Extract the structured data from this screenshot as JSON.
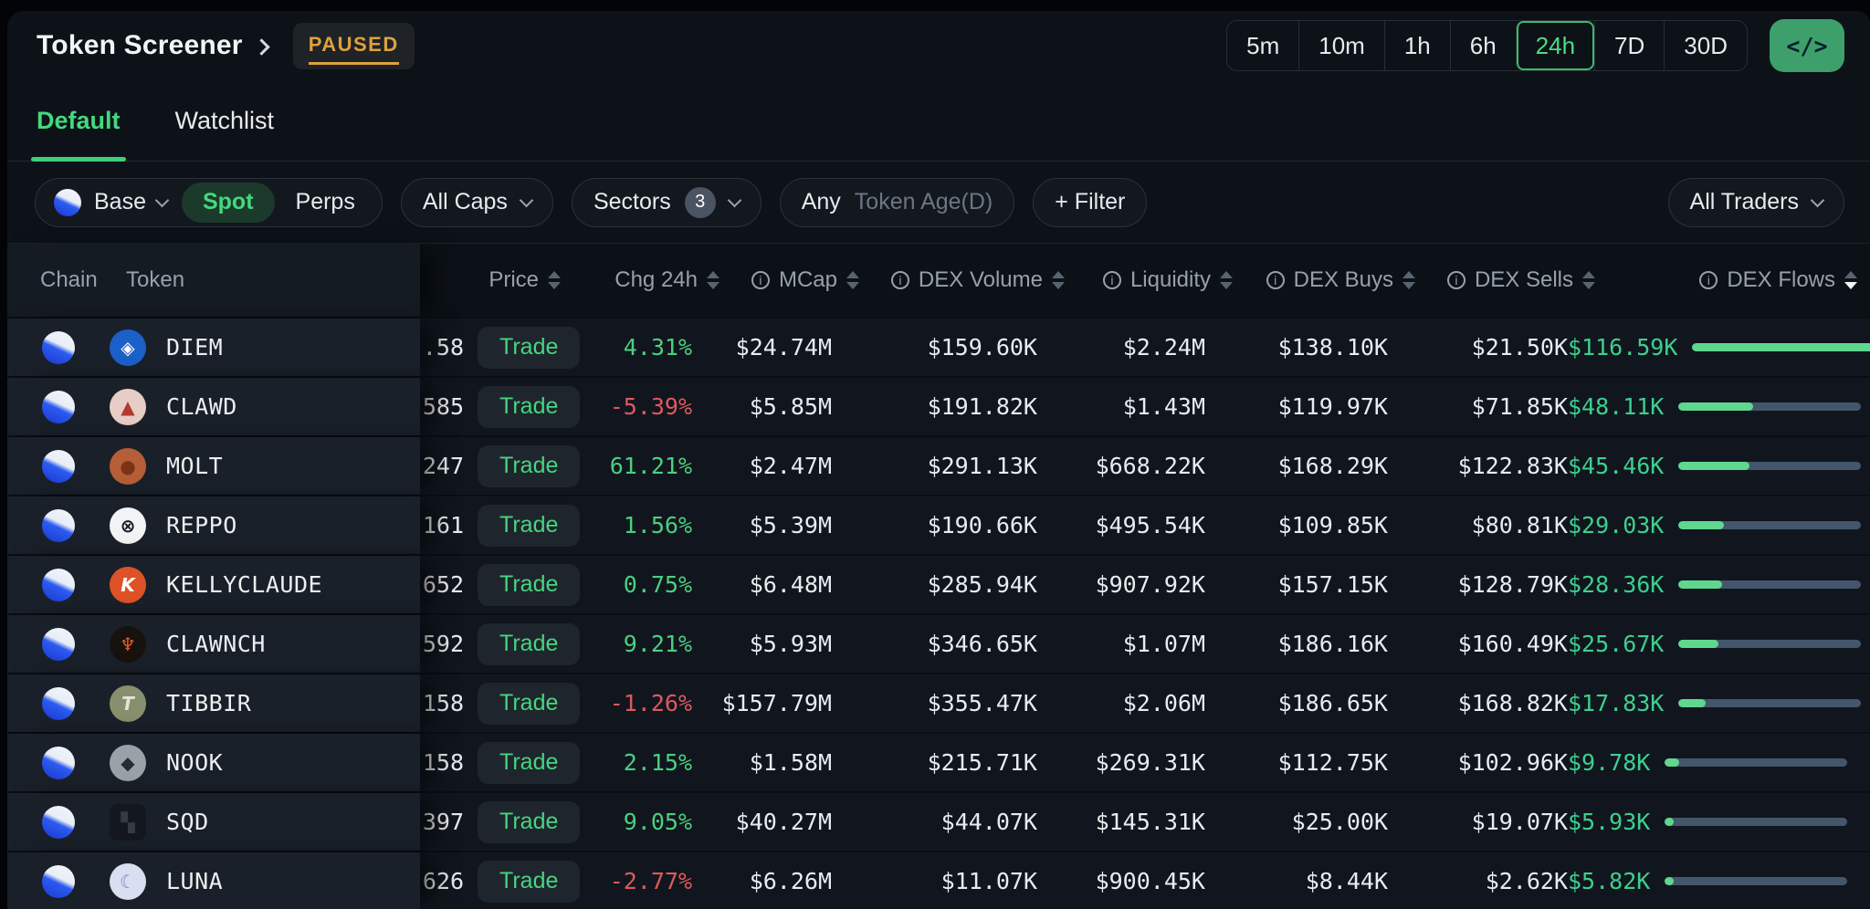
{
  "header": {
    "title": "Token Screener",
    "status_badge": "PAUSED",
    "timeframes": [
      "5m",
      "10m",
      "1h",
      "6h",
      "24h",
      "7D",
      "30D"
    ],
    "active_timeframe": "24h",
    "code_button_label": "</>"
  },
  "tabs": [
    {
      "label": "Default",
      "active": true
    },
    {
      "label": "Watchlist",
      "active": false
    }
  ],
  "filters": {
    "chain": {
      "label": "Base",
      "icon": "base-chain-icon"
    },
    "market_toggle": {
      "options": [
        "Spot",
        "Perps"
      ],
      "selected": "Spot"
    },
    "caps": "All Caps",
    "sectors": {
      "label": "Sectors",
      "count": "3"
    },
    "token_age": {
      "value": "Any",
      "placeholder": "Token Age(D)"
    },
    "add_filter": "+ Filter",
    "traders": "All Traders"
  },
  "table": {
    "trade_label": "Trade",
    "columns": [
      {
        "key": "chain",
        "label": "Chain",
        "info": false,
        "sortable": false
      },
      {
        "key": "token",
        "label": "Token",
        "info": false,
        "sortable": false
      },
      {
        "key": "price",
        "label": "Price",
        "info": false,
        "sortable": true
      },
      {
        "key": "chg",
        "label": "Chg 24h",
        "info": false,
        "sortable": true
      },
      {
        "key": "mcap",
        "label": "MCap",
        "info": true,
        "sortable": true
      },
      {
        "key": "volume",
        "label": "DEX Volume",
        "info": true,
        "sortable": true
      },
      {
        "key": "liquidity",
        "label": "Liquidity",
        "info": true,
        "sortable": true
      },
      {
        "key": "buys",
        "label": "DEX Buys",
        "info": true,
        "sortable": true
      },
      {
        "key": "sells",
        "label": "DEX Sells",
        "info": true,
        "sortable": true
      },
      {
        "key": "flows",
        "label": "DEX Flows",
        "info": true,
        "sortable": true,
        "sorted": "desc"
      }
    ],
    "rows": [
      {
        "chain": "Base",
        "token": "DIEM",
        "icon": {
          "bg": "#1b5fc8",
          "fg": "#ffffff",
          "glyph": "◈",
          "shape": "circle"
        },
        "price_partial": ".58",
        "chg_24h": "4.31%",
        "mcap": "$24.74M",
        "dex_volume": "$159.60K",
        "liquidity": "$2.24M",
        "dex_buys": "$138.10K",
        "dex_sells": "$21.50K",
        "dex_flows": "$116.59K",
        "flow_bar_pct": 100
      },
      {
        "chain": "Base",
        "token": "CLAWD",
        "icon": {
          "bg": "#e7cdc5",
          "fg": "#b03a2e",
          "glyph": "▲",
          "shape": "circle"
        },
        "price_partial": "585",
        "chg_24h": "-5.39%",
        "mcap": "$5.85M",
        "dex_volume": "$191.82K",
        "liquidity": "$1.43M",
        "dex_buys": "$119.97K",
        "dex_sells": "$71.85K",
        "dex_flows": "$48.11K",
        "flow_bar_pct": 41
      },
      {
        "chain": "Base",
        "token": "MOLT",
        "icon": {
          "bg": "#b55e38",
          "fg": "#7c3215",
          "glyph": "●",
          "shape": "circle"
        },
        "price_partial": "247",
        "chg_24h": "61.21%",
        "mcap": "$2.47M",
        "dex_volume": "$291.13K",
        "liquidity": "$668.22K",
        "dex_buys": "$168.29K",
        "dex_sells": "$122.83K",
        "dex_flows": "$45.46K",
        "flow_bar_pct": 39
      },
      {
        "chain": "Base",
        "token": "REPPO",
        "icon": {
          "bg": "#f2f3f4",
          "fg": "#15181c",
          "glyph": "⊗",
          "shape": "circle"
        },
        "price_partial": "161",
        "chg_24h": "1.56%",
        "mcap": "$5.39M",
        "dex_volume": "$190.66K",
        "liquidity": "$495.54K",
        "dex_buys": "$109.85K",
        "dex_sells": "$80.81K",
        "dex_flows": "$29.03K",
        "flow_bar_pct": 25
      },
      {
        "chain": "Base",
        "token": "KELLYCLAUDE",
        "icon": {
          "bg": "#dd5226",
          "fg": "#ffffff",
          "glyph": "K",
          "shape": "circle"
        },
        "price_partial": "652",
        "chg_24h": "0.75%",
        "mcap": "$6.48M",
        "dex_volume": "$285.94K",
        "liquidity": "$907.92K",
        "dex_buys": "$157.15K",
        "dex_sells": "$128.79K",
        "dex_flows": "$28.36K",
        "flow_bar_pct": 24
      },
      {
        "chain": "Base",
        "token": "CLAWNCH",
        "icon": {
          "bg": "#17120e",
          "fg": "#e55b22",
          "glyph": "♆",
          "shape": "circle"
        },
        "price_partial": "592",
        "chg_24h": "9.21%",
        "mcap": "$5.93M",
        "dex_volume": "$346.65K",
        "liquidity": "$1.07M",
        "dex_buys": "$186.16K",
        "dex_sells": "$160.49K",
        "dex_flows": "$25.67K",
        "flow_bar_pct": 22
      },
      {
        "chain": "Base",
        "token": "TIBBIR",
        "icon": {
          "bg": "#86906f",
          "fg": "#e8e4d4",
          "glyph": "T",
          "shape": "circle"
        },
        "price_partial": "158",
        "chg_24h": "-1.26%",
        "mcap": "$157.79M",
        "dex_volume": "$355.47K",
        "liquidity": "$2.06M",
        "dex_buys": "$186.65K",
        "dex_sells": "$168.82K",
        "dex_flows": "$17.83K",
        "flow_bar_pct": 15
      },
      {
        "chain": "Base",
        "token": "NOOK",
        "icon": {
          "bg": "#9aa1a9",
          "fg": "#262c33",
          "glyph": "◆",
          "shape": "circle"
        },
        "price_partial": "158",
        "chg_24h": "2.15%",
        "mcap": "$1.58M",
        "dex_volume": "$215.71K",
        "liquidity": "$269.31K",
        "dex_buys": "$112.75K",
        "dex_sells": "$102.96K",
        "dex_flows": "$9.78K",
        "flow_bar_pct": 8
      },
      {
        "chain": "Base",
        "token": "SQD",
        "icon": {
          "bg": "#14181e",
          "fg": "#343b44",
          "glyph": "▚",
          "shape": "square"
        },
        "price_partial": "397",
        "chg_24h": "9.05%",
        "mcap": "$40.27M",
        "dex_volume": "$44.07K",
        "liquidity": "$145.31K",
        "dex_buys": "$25.00K",
        "dex_sells": "$19.07K",
        "dex_flows": "$5.93K",
        "flow_bar_pct": 5
      },
      {
        "chain": "Base",
        "token": "LUNA",
        "icon": {
          "bg": "#d9def0",
          "fg": "#7d88c0",
          "glyph": "☾",
          "shape": "circle"
        },
        "price_partial": "626",
        "chg_24h": "-2.77%",
        "mcap": "$6.26M",
        "dex_volume": "$11.07K",
        "liquidity": "$900.45K",
        "dex_buys": "$8.44K",
        "dex_sells": "$2.62K",
        "dex_flows": "$5.82K",
        "flow_bar_pct": 5
      }
    ]
  },
  "colors": {
    "accent_green": "#46d57f",
    "positive": "#4ccf7f",
    "negative": "#e0585e",
    "amber": "#dda23c",
    "flow_green": "#3ecf8e",
    "bar_green": "#5fd78f",
    "bar_slate": "#44566b",
    "chain_blue": "#2c5bf0"
  }
}
